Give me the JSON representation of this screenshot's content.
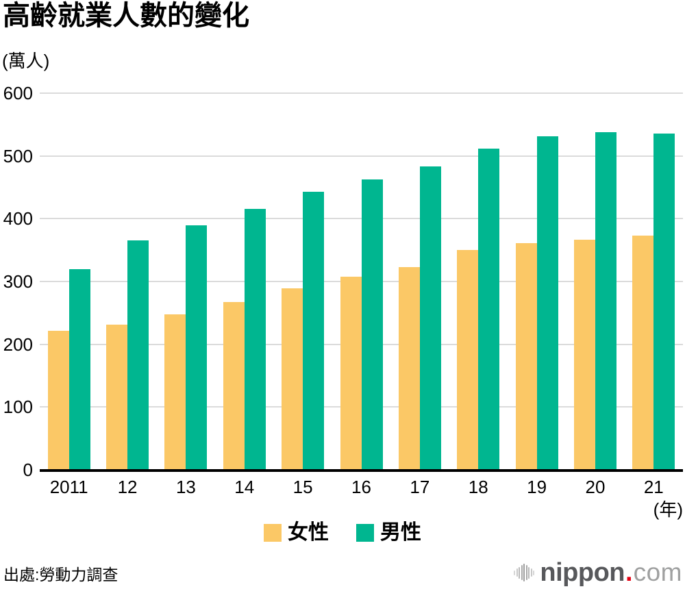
{
  "title": "高齡就業人數的變化",
  "unit_label": "(萬人)",
  "axis_year_label": "(年)",
  "source": "出處:勞動力調查",
  "legend": {
    "female": "女性",
    "male": "男性"
  },
  "logo": {
    "name": "nippon",
    "dot": ".",
    "tld": "com"
  },
  "icons": {
    "logo_mark": "soundwave-bars"
  },
  "colors": {
    "female": "#FBC866",
    "male": "#00B690",
    "grid": "#DBDBDB",
    "axis": "#000000",
    "logo_dark": "#57585B",
    "logo_gray": "#9FA0A0",
    "logo_red": "#E60012"
  },
  "chart_data": {
    "type": "bar",
    "title": "高齡就業人數的變化",
    "unit": "萬人",
    "x": [
      "2011",
      "12",
      "13",
      "14",
      "15",
      "16",
      "17",
      "18",
      "19",
      "20",
      "21"
    ],
    "series": [
      {
        "name": "女性",
        "key": "female",
        "values": [
          222,
          231,
          248,
          267,
          289,
          308,
          323,
          350,
          361,
          367,
          373
        ]
      },
      {
        "name": "男性",
        "key": "male",
        "values": [
          320,
          366,
          390,
          416,
          443,
          463,
          483,
          512,
          531,
          538,
          536
        ]
      }
    ],
    "ylim": [
      0,
      600
    ],
    "yticks": [
      0,
      100,
      200,
      300,
      400,
      500,
      600
    ],
    "grid": true,
    "legend_position": "bottom",
    "source": "勞動力調查"
  }
}
